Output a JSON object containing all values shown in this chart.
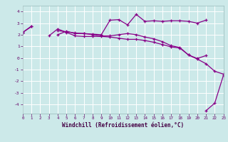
{
  "xlabel": "Windchill (Refroidissement éolien,°C)",
  "background_color": "#cce9e9",
  "grid_color": "#aadddd",
  "line_color": "#880088",
  "hours": [
    0,
    1,
    2,
    3,
    4,
    5,
    6,
    7,
    8,
    9,
    10,
    11,
    12,
    13,
    14,
    15,
    16,
    17,
    18,
    19,
    20,
    21,
    22,
    23
  ],
  "line1": [
    2.2,
    2.7,
    null,
    1.9,
    2.5,
    2.2,
    1.9,
    1.85,
    1.85,
    1.85,
    1.8,
    1.7,
    1.6,
    1.6,
    1.5,
    1.35,
    1.15,
    0.95,
    0.85,
    0.25,
    -0.1,
    -0.5,
    -1.15,
    -1.4
  ],
  "line2": [
    2.2,
    null,
    null,
    null,
    2.0,
    2.3,
    2.1,
    2.1,
    2.0,
    1.9,
    1.9,
    2.0,
    2.1,
    2.0,
    1.8,
    1.65,
    1.4,
    1.05,
    0.9,
    0.25,
    -0.05,
    0.2,
    null,
    null
  ],
  "line3": [
    2.2,
    2.75,
    null,
    null,
    2.35,
    2.25,
    2.15,
    2.1,
    2.05,
    2.0,
    3.25,
    3.3,
    2.85,
    3.75,
    3.15,
    3.2,
    3.15,
    3.2,
    3.2,
    3.15,
    3.0,
    3.25,
    null,
    null
  ],
  "line4": [
    null,
    null,
    null,
    null,
    null,
    null,
    null,
    null,
    null,
    null,
    null,
    null,
    null,
    null,
    null,
    null,
    null,
    null,
    null,
    null,
    null,
    -4.55,
    -3.9,
    -1.5
  ],
  "ylim": [
    -4.8,
    4.5
  ],
  "yticks": [
    -4,
    -3,
    -2,
    -1,
    0,
    1,
    2,
    3,
    4
  ],
  "xlim": [
    0,
    23
  ],
  "xticks": [
    0,
    1,
    2,
    3,
    4,
    5,
    6,
    7,
    8,
    9,
    10,
    11,
    12,
    13,
    14,
    15,
    16,
    17,
    18,
    19,
    20,
    21,
    22,
    23
  ],
  "figsize": [
    3.2,
    2.0
  ],
  "dpi": 100
}
